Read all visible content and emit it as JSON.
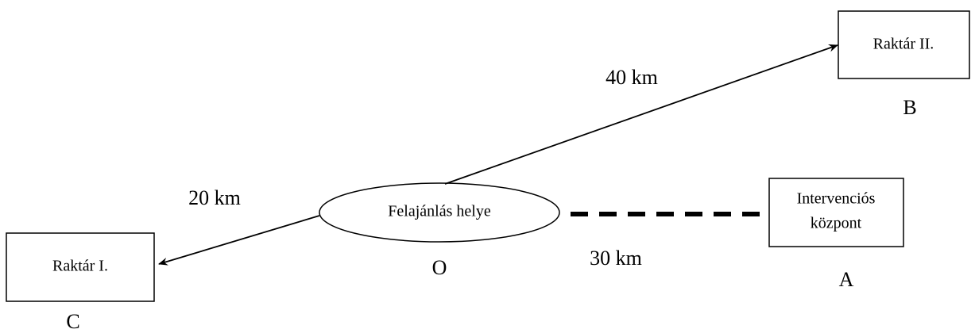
{
  "nodes": [
    {
      "lines": [
        "Raktár II."
      ],
      "letter": "B"
    },
    {
      "lines": [
        "Felajánlás helye"
      ],
      "letter": "O"
    },
    {
      "lines": [
        "Intervenciós",
        "központ"
      ],
      "letter": "A"
    },
    {
      "lines": [
        "Raktár I."
      ],
      "letter": "C"
    }
  ],
  "edges": [
    {
      "label": "40 km"
    },
    {
      "label": "20 km"
    },
    {
      "label": "30 km"
    }
  ]
}
